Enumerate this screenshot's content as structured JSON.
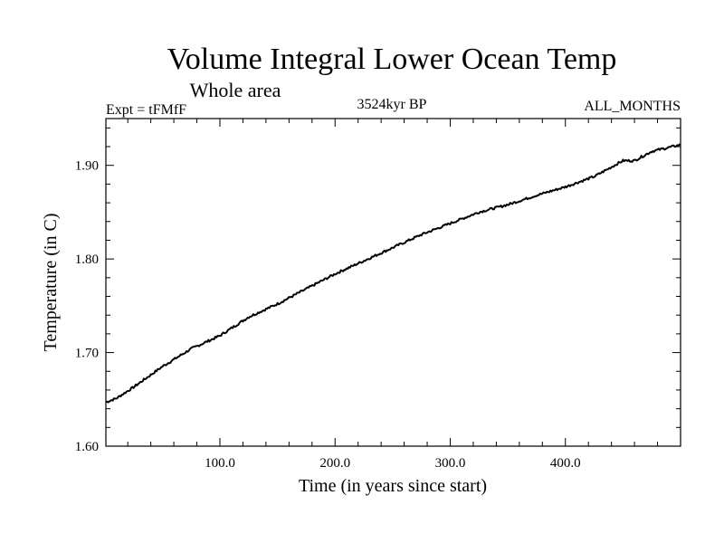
{
  "chart_data": {
    "type": "line",
    "title": "Volume Integral Lower Ocean Temp",
    "subtitle": "Whole area",
    "left_label": "Expt = tFMfF",
    "center_label": "3524kyr BP",
    "right_label": "ALL_MONTHS",
    "xlabel": "Time (in years since start)",
    "ylabel": "Temperature (in C)",
    "xlim": [
      1,
      500
    ],
    "ylim": [
      1.6,
      1.95
    ],
    "x_ticks": [
      100,
      200,
      300,
      400
    ],
    "x_tick_labels": [
      "100.0",
      "200.0",
      "300.0",
      "400.0"
    ],
    "y_ticks": [
      1.6,
      1.7,
      1.8,
      1.9
    ],
    "y_tick_labels": [
      "1.60",
      "1.70",
      "1.80",
      "1.90"
    ],
    "grid": false,
    "series": [
      {
        "name": "Volume Integral Lower Ocean Temp",
        "x": [
          1,
          10,
          25,
          50,
          75,
          100,
          125,
          150,
          175,
          200,
          225,
          250,
          275,
          300,
          325,
          350,
          375,
          400,
          425,
          450,
          460,
          475,
          500
        ],
        "y": [
          1.647,
          1.651,
          1.663,
          1.685,
          1.704,
          1.718,
          1.738,
          1.752,
          1.768,
          1.784,
          1.798,
          1.812,
          1.826,
          1.838,
          1.85,
          1.858,
          1.868,
          1.877,
          1.888,
          1.905,
          1.905,
          1.915,
          1.922
        ]
      }
    ]
  }
}
